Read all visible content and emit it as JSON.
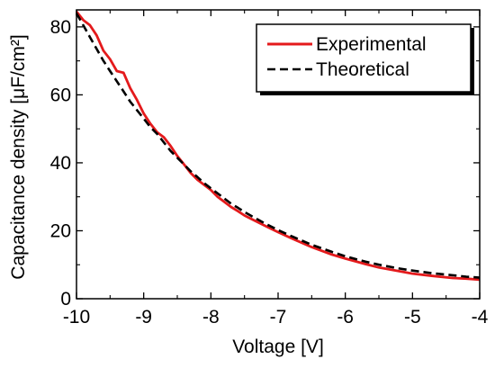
{
  "chart_data": {
    "type": "line",
    "xlabel": "Voltage [V]",
    "ylabel": "Capacitance density [μF/cm²]",
    "xlim": [
      -10,
      -4
    ],
    "ylim": [
      0,
      85
    ],
    "x_ticks": [
      -10,
      -9,
      -8,
      -7,
      -6,
      -5,
      -4
    ],
    "x_tick_labels": [
      "-10",
      "-9",
      "-8",
      "-7",
      "-6",
      "-5",
      "-4"
    ],
    "y_ticks": [
      0,
      20,
      40,
      60,
      80
    ],
    "y_tick_labels": [
      "0",
      "20",
      "40",
      "60",
      "80"
    ],
    "grid": false,
    "legend_position": "top-right",
    "series": [
      {
        "name": "Experimental",
        "color": "#e41a1c",
        "style": "solid",
        "x": [
          -10,
          -9.9,
          -9.8,
          -9.7,
          -9.6,
          -9.5,
          -9.4,
          -9.3,
          -9.2,
          -9.1,
          -9.0,
          -8.9,
          -8.8,
          -8.7,
          -8.6,
          -8.5,
          -8.4,
          -8.3,
          -8.2,
          -8.1,
          -8.0,
          -7.9,
          -7.8,
          -7.7,
          -7.6,
          -7.5,
          -7.4,
          -7.2,
          -7.0,
          -6.8,
          -6.5,
          -6.2,
          -6.0,
          -5.7,
          -5.5,
          -5.2,
          -5.0,
          -4.7,
          -4.4,
          -4.2,
          -4.0
        ],
        "values": [
          84.5,
          82,
          80.5,
          77.5,
          73,
          70.5,
          67,
          66.5,
          62,
          58.5,
          54.5,
          51.5,
          49,
          47.5,
          45,
          42,
          39.5,
          37,
          35,
          33.5,
          32,
          30,
          28.5,
          27,
          25.8,
          24.5,
          23.5,
          21.5,
          19.6,
          17.8,
          15.2,
          13,
          11.8,
          10.2,
          9.2,
          8.1,
          7.4,
          6.7,
          6.1,
          5.9,
          5.6
        ]
      },
      {
        "name": "Theoretical",
        "color": "#000000",
        "style": "dashed",
        "x": [
          -10,
          -9.9,
          -9.8,
          -9.7,
          -9.6,
          -9.5,
          -9.4,
          -9.3,
          -9.2,
          -9.1,
          -9.0,
          -8.9,
          -8.8,
          -8.7,
          -8.6,
          -8.5,
          -8.4,
          -8.3,
          -8.2,
          -8.1,
          -8.0,
          -7.9,
          -7.8,
          -7.7,
          -7.6,
          -7.5,
          -7.4,
          -7.2,
          -7.0,
          -6.8,
          -6.5,
          -6.2,
          -6.0,
          -5.7,
          -5.5,
          -5.2,
          -5.0,
          -4.7,
          -4.4,
          -4.2,
          -4.0
        ],
        "values": [
          84,
          80.5,
          77,
          73.5,
          70,
          67,
          64,
          61,
          58,
          55.5,
          53,
          50.5,
          48.5,
          46,
          43.5,
          41.5,
          39.5,
          37.5,
          35.8,
          34,
          32.5,
          31,
          29.5,
          28,
          26.8,
          25.5,
          24.4,
          22.2,
          20.2,
          18.4,
          15.9,
          13.8,
          12.5,
          10.9,
          10,
          8.9,
          8.3,
          7.5,
          6.9,
          6.5,
          6.2
        ]
      }
    ]
  }
}
